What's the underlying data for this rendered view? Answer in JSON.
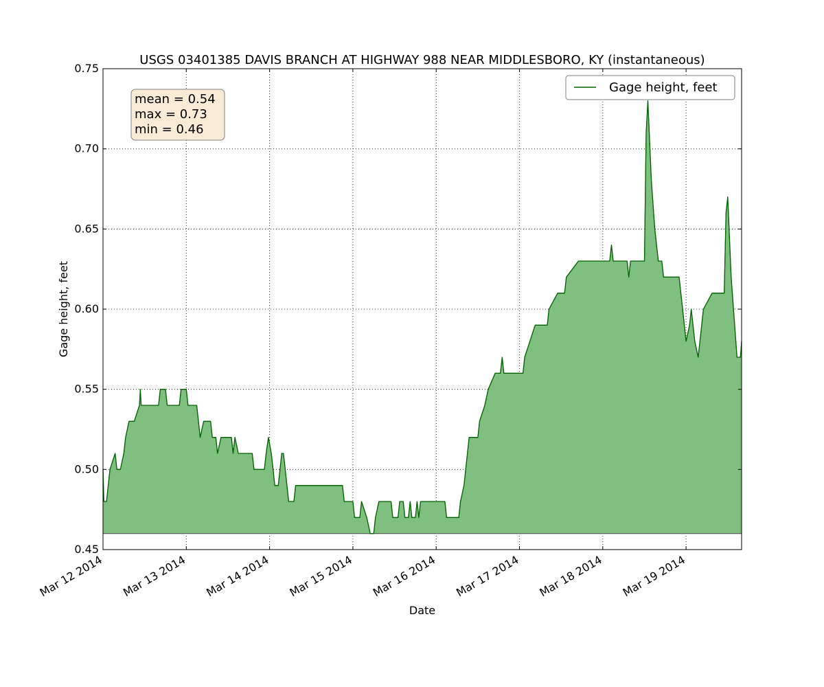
{
  "chart_data": {
    "type": "area",
    "title": "USGS 03401385 DAVIS BRANCH AT HIGHWAY 988 NEAR MIDDLESBORO, KY (instantaneous)",
    "xlabel": "Date",
    "ylabel": "Gage height, feet",
    "ylim": [
      0.45,
      0.75
    ],
    "yticks": [
      "0.45",
      "0.50",
      "0.55",
      "0.60",
      "0.65",
      "0.70",
      "0.75"
    ],
    "xlim": [
      "2014-03-12 00:00",
      "2014-03-19 16:00"
    ],
    "xticks": [
      "Mar 12 2014",
      "Mar 13 2014",
      "Mar 14 2014",
      "Mar 15 2014",
      "Mar 16 2014",
      "Mar 17 2014",
      "Mar 18 2014",
      "Mar 19 2014"
    ],
    "grid": true,
    "fill_baseline": 0.46,
    "legend": {
      "position": "top-right",
      "entries": [
        "Gage height, feet"
      ]
    },
    "stats_box": {
      "position": "top-left",
      "lines": [
        "mean = 0.54",
        "max = 0.73",
        "min = 0.46"
      ]
    },
    "colors": {
      "line": "#006400",
      "fill": "#7fbf7f",
      "stats_bg": "#faebd7"
    },
    "series": [
      {
        "name": "Gage height, feet",
        "points": [
          [
            "2014-03-12 00:00",
            0.5
          ],
          [
            "2014-03-12 00:15",
            0.48
          ],
          [
            "2014-03-12 01:00",
            0.48
          ],
          [
            "2014-03-12 01:30",
            0.49
          ],
          [
            "2014-03-12 02:00",
            0.5
          ],
          [
            "2014-03-12 03:30",
            0.51
          ],
          [
            "2014-03-12 04:00",
            0.5
          ],
          [
            "2014-03-12 05:00",
            0.5
          ],
          [
            "2014-03-12 06:00",
            0.51
          ],
          [
            "2014-03-12 06:30",
            0.52
          ],
          [
            "2014-03-12 07:30",
            0.53
          ],
          [
            "2014-03-12 09:00",
            0.53
          ],
          [
            "2014-03-12 10:30",
            0.54
          ],
          [
            "2014-03-12 10:45",
            0.55
          ],
          [
            "2014-03-12 11:00",
            0.54
          ],
          [
            "2014-03-12 16:00",
            0.54
          ],
          [
            "2014-03-12 16:30",
            0.55
          ],
          [
            "2014-03-12 18:00",
            0.55
          ],
          [
            "2014-03-12 18:30",
            0.54
          ],
          [
            "2014-03-12 22:00",
            0.54
          ],
          [
            "2014-03-12 22:30",
            0.55
          ],
          [
            "2014-03-13 00:00",
            0.55
          ],
          [
            "2014-03-13 00:30",
            0.54
          ],
          [
            "2014-03-13 03:00",
            0.54
          ],
          [
            "2014-03-13 03:30",
            0.53
          ],
          [
            "2014-03-13 04:00",
            0.52
          ],
          [
            "2014-03-13 05:00",
            0.53
          ],
          [
            "2014-03-13 07:00",
            0.53
          ],
          [
            "2014-03-13 07:30",
            0.52
          ],
          [
            "2014-03-13 08:30",
            0.52
          ],
          [
            "2014-03-13 09:00",
            0.51
          ],
          [
            "2014-03-13 10:00",
            0.52
          ],
          [
            "2014-03-13 13:00",
            0.52
          ],
          [
            "2014-03-13 13:30",
            0.51
          ],
          [
            "2014-03-13 14:00",
            0.52
          ],
          [
            "2014-03-13 15:00",
            0.51
          ],
          [
            "2014-03-13 19:00",
            0.51
          ],
          [
            "2014-03-13 19:30",
            0.5
          ],
          [
            "2014-03-13 22:30",
            0.5
          ],
          [
            "2014-03-13 23:00",
            0.51
          ],
          [
            "2014-03-13 23:40",
            0.52
          ],
          [
            "2014-03-14 00:30",
            0.51
          ],
          [
            "2014-03-14 01:00",
            0.5
          ],
          [
            "2014-03-14 01:30",
            0.49
          ],
          [
            "2014-03-14 02:30",
            0.49
          ],
          [
            "2014-03-14 03:00",
            0.5
          ],
          [
            "2014-03-14 03:30",
            0.51
          ],
          [
            "2014-03-14 04:00",
            0.51
          ],
          [
            "2014-03-14 04:30",
            0.5
          ],
          [
            "2014-03-14 05:00",
            0.49
          ],
          [
            "2014-03-14 05:30",
            0.48
          ],
          [
            "2014-03-14 07:00",
            0.48
          ],
          [
            "2014-03-14 07:30",
            0.49
          ],
          [
            "2014-03-14 20:00",
            0.49
          ],
          [
            "2014-03-14 21:00",
            0.49
          ],
          [
            "2014-03-14 21:30",
            0.48
          ],
          [
            "2014-03-15 00:00",
            0.48
          ],
          [
            "2014-03-15 00:30",
            0.47
          ],
          [
            "2014-03-15 02:00",
            0.47
          ],
          [
            "2014-03-15 02:30",
            0.48
          ],
          [
            "2014-03-15 04:00",
            0.47
          ],
          [
            "2014-03-15 05:00",
            0.46
          ],
          [
            "2014-03-15 06:00",
            0.46
          ],
          [
            "2014-03-15 06:30",
            0.47
          ],
          [
            "2014-03-15 07:30",
            0.48
          ],
          [
            "2014-03-15 11:00",
            0.48
          ],
          [
            "2014-03-15 11:30",
            0.47
          ],
          [
            "2014-03-15 13:00",
            0.47
          ],
          [
            "2014-03-15 13:30",
            0.48
          ],
          [
            "2014-03-15 14:30",
            0.48
          ],
          [
            "2014-03-15 15:00",
            0.47
          ],
          [
            "2014-03-15 16:00",
            0.47
          ],
          [
            "2014-03-15 16:30",
            0.48
          ],
          [
            "2014-03-15 17:00",
            0.47
          ],
          [
            "2014-03-15 18:00",
            0.47
          ],
          [
            "2014-03-15 18:30",
            0.48
          ],
          [
            "2014-03-15 19:00",
            0.47
          ],
          [
            "2014-03-15 19:30",
            0.48
          ],
          [
            "2014-03-16 02:30",
            0.48
          ],
          [
            "2014-03-16 03:00",
            0.47
          ],
          [
            "2014-03-16 05:00",
            0.47
          ],
          [
            "2014-03-16 06:30",
            0.47
          ],
          [
            "2014-03-16 07:00",
            0.48
          ],
          [
            "2014-03-16 08:00",
            0.49
          ],
          [
            "2014-03-16 09:00",
            0.51
          ],
          [
            "2014-03-16 09:30",
            0.52
          ],
          [
            "2014-03-16 12:00",
            0.52
          ],
          [
            "2014-03-16 12:30",
            0.53
          ],
          [
            "2014-03-16 14:00",
            0.54
          ],
          [
            "2014-03-16 15:00",
            0.55
          ],
          [
            "2014-03-16 17:00",
            0.56
          ],
          [
            "2014-03-16 18:30",
            0.56
          ],
          [
            "2014-03-16 19:00",
            0.57
          ],
          [
            "2014-03-16 19:30",
            0.56
          ],
          [
            "2014-03-17 00:00",
            0.56
          ],
          [
            "2014-03-17 01:00",
            0.56
          ],
          [
            "2014-03-17 01:30",
            0.57
          ],
          [
            "2014-03-17 03:00",
            0.58
          ],
          [
            "2014-03-17 04:30",
            0.59
          ],
          [
            "2014-03-17 08:00",
            0.59
          ],
          [
            "2014-03-17 08:30",
            0.6
          ],
          [
            "2014-03-17 11:00",
            0.61
          ],
          [
            "2014-03-17 13:00",
            0.61
          ],
          [
            "2014-03-17 13:30",
            0.62
          ],
          [
            "2014-03-17 17:00",
            0.63
          ],
          [
            "2014-03-17 21:00",
            0.63
          ],
          [
            "2014-03-18 00:00",
            0.63
          ],
          [
            "2014-03-18 02:00",
            0.63
          ],
          [
            "2014-03-18 02:30",
            0.64
          ],
          [
            "2014-03-18 03:00",
            0.63
          ],
          [
            "2014-03-18 06:00",
            0.63
          ],
          [
            "2014-03-18 07:00",
            0.63
          ],
          [
            "2014-03-18 07:30",
            0.62
          ],
          [
            "2014-03-18 08:00",
            0.63
          ],
          [
            "2014-03-18 10:00",
            0.63
          ],
          [
            "2014-03-18 12:00",
            0.63
          ],
          [
            "2014-03-18 12:30",
            0.71
          ],
          [
            "2014-03-18 13:00",
            0.73
          ],
          [
            "2014-03-18 14:00",
            0.68
          ],
          [
            "2014-03-18 15:00",
            0.65
          ],
          [
            "2014-03-18 16:00",
            0.63
          ],
          [
            "2014-03-18 17:00",
            0.63
          ],
          [
            "2014-03-18 17:30",
            0.62
          ],
          [
            "2014-03-18 21:00",
            0.62
          ],
          [
            "2014-03-18 22:00",
            0.62
          ],
          [
            "2014-03-18 23:00",
            0.6
          ],
          [
            "2014-03-19 00:00",
            0.58
          ],
          [
            "2014-03-19 01:00",
            0.59
          ],
          [
            "2014-03-19 01:30",
            0.6
          ],
          [
            "2014-03-19 02:30",
            0.58
          ],
          [
            "2014-03-19 03:30",
            0.57
          ],
          [
            "2014-03-19 04:00",
            0.58
          ],
          [
            "2014-03-19 05:00",
            0.6
          ],
          [
            "2014-03-19 07:30",
            0.61
          ],
          [
            "2014-03-19 10:00",
            0.61
          ],
          [
            "2014-03-19 11:00",
            0.61
          ],
          [
            "2014-03-19 11:30",
            0.66
          ],
          [
            "2014-03-19 12:00",
            0.67
          ],
          [
            "2014-03-19 13:00",
            0.62
          ],
          [
            "2014-03-19 14:00",
            0.59
          ],
          [
            "2014-03-19 14:40",
            0.57
          ],
          [
            "2014-03-19 15:40",
            0.57
          ],
          [
            "2014-03-19 16:00",
            0.58
          ]
        ]
      }
    ]
  }
}
